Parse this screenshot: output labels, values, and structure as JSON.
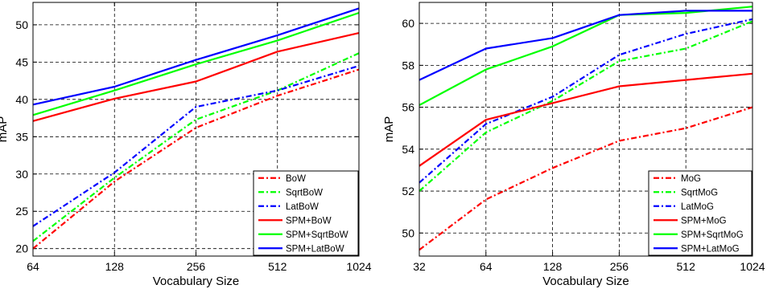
{
  "chart_data": [
    {
      "type": "line",
      "title": "",
      "xlabel": "Vocabulary Size",
      "ylabel": "mAP",
      "x": [
        64,
        128,
        256,
        512,
        1024
      ],
      "x_scale": "log2",
      "xlim": [
        64,
        1024
      ],
      "ylim": [
        19,
        53
      ],
      "yticks": [
        20,
        25,
        30,
        35,
        40,
        45,
        50
      ],
      "grid": true,
      "legend_position": "bottom-right",
      "series": [
        {
          "name": "BoW",
          "color": "#ff0000",
          "style": "dashdot",
          "values": [
            20.0,
            29.0,
            36.2,
            40.5,
            44.0
          ]
        },
        {
          "name": "SqrtBoW",
          "color": "#00ff00",
          "style": "dashdot",
          "values": [
            21.0,
            29.5,
            37.3,
            41.2,
            46.2
          ]
        },
        {
          "name": "LatBoW",
          "color": "#0000ff",
          "style": "dashdot",
          "values": [
            23.0,
            30.2,
            39.0,
            41.2,
            44.5
          ]
        },
        {
          "name": "SPM+BoW",
          "color": "#ff0000",
          "style": "solid",
          "values": [
            37.1,
            40.1,
            42.4,
            46.4,
            48.9
          ]
        },
        {
          "name": "SPM+SqrtBoW",
          "color": "#00ff00",
          "style": "solid",
          "values": [
            37.9,
            41.2,
            44.7,
            47.9,
            51.6
          ]
        },
        {
          "name": "SPM+LatBoW",
          "color": "#0000ff",
          "style": "solid",
          "values": [
            39.3,
            41.7,
            45.3,
            48.6,
            52.2
          ]
        }
      ]
    },
    {
      "type": "line",
      "title": "",
      "xlabel": "Vocabulary Size",
      "ylabel": "mAP",
      "x": [
        32,
        64,
        128,
        256,
        512,
        1024
      ],
      "x_scale": "log2",
      "xlim": [
        32,
        1024
      ],
      "ylim": [
        48.9,
        61.0
      ],
      "yticks": [
        50,
        52,
        54,
        56,
        58,
        60
      ],
      "grid": true,
      "legend_position": "bottom-right",
      "series": [
        {
          "name": "MoG",
          "color": "#ff0000",
          "style": "dashdot",
          "values": [
            49.2,
            51.6,
            53.1,
            54.4,
            55.0,
            56.0
          ]
        },
        {
          "name": "SqrtMoG",
          "color": "#00ff00",
          "style": "dashdot",
          "values": [
            52.0,
            54.8,
            56.3,
            58.2,
            58.8,
            60.1
          ]
        },
        {
          "name": "LatMoG",
          "color": "#0000ff",
          "style": "dashdot",
          "values": [
            52.4,
            55.2,
            56.5,
            58.5,
            59.5,
            60.2
          ]
        },
        {
          "name": "SPM+MoG",
          "color": "#ff0000",
          "style": "solid",
          "values": [
            53.2,
            55.4,
            56.2,
            57.0,
            57.3,
            57.6
          ]
        },
        {
          "name": "SPM+SqrtMoG",
          "color": "#00ff00",
          "style": "solid",
          "values": [
            56.1,
            57.8,
            58.9,
            60.4,
            60.5,
            60.8
          ]
        },
        {
          "name": "SPM+LatMoG",
          "color": "#0000ff",
          "style": "solid",
          "values": [
            57.3,
            58.8,
            59.3,
            60.4,
            60.6,
            60.6
          ]
        }
      ]
    }
  ]
}
